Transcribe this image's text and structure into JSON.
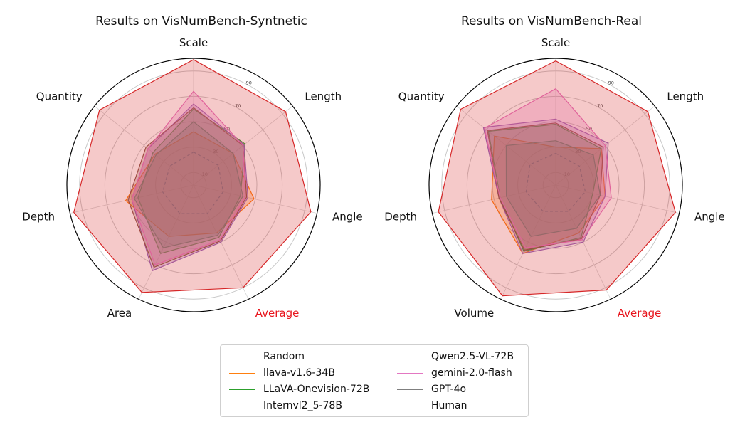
{
  "chart_data": [
    {
      "type": "radar",
      "title": "Results on VisNumBench-Syntnetic",
      "axes": [
        "Scale",
        "Length",
        "Angle",
        "Average",
        "Area",
        "Depth",
        "Quantity"
      ],
      "highlight_axis": "Average",
      "radial_ticks": [
        "10",
        "30",
        "50",
        "70",
        "90"
      ],
      "rlim": [
        0,
        100
      ],
      "grid": true,
      "series": [
        {
          "name": "Random",
          "values": [
            26,
            25,
            24,
            25,
            25,
            25,
            24
          ]
        },
        {
          "name": "llava-v1.6-34B",
          "values": [
            42,
            40,
            49,
            42,
            45,
            55,
            39
          ]
        },
        {
          "name": "LLaVA-Onevision-72B",
          "values": [
            60,
            52,
            38,
            46,
            60,
            45,
            41
          ]
        },
        {
          "name": "Internvl2_5-78B",
          "values": [
            64,
            51,
            44,
            50,
            75,
            50,
            46
          ]
        },
        {
          "name": "Qwen2.5-VL-72B",
          "values": [
            61,
            50,
            43,
            49,
            72,
            53,
            48
          ]
        },
        {
          "name": "gemini-2.0-flash",
          "values": [
            74,
            50,
            42,
            48,
            70,
            50,
            46
          ]
        },
        {
          "name": "GPT-4o",
          "values": [
            50,
            40,
            40,
            44,
            55,
            48,
            38
          ]
        },
        {
          "name": "Human",
          "values": [
            99,
            93,
            95,
            90,
            94,
            97,
            95
          ]
        }
      ]
    },
    {
      "type": "radar",
      "title": "Results on VisNumBench-Real",
      "axes": [
        "Scale",
        "Length",
        "Angle",
        "Average",
        "Volume",
        "Depth",
        "Quantity"
      ],
      "highlight_axis": "Average",
      "radial_ticks": [
        "10",
        "30",
        "50",
        "70",
        "90"
      ],
      "rlim": [
        0,
        100
      ],
      "grid": true,
      "series": [
        {
          "name": "Random",
          "values": [
            25,
            24,
            24,
            23,
            23,
            24,
            26
          ]
        },
        {
          "name": "llava-v1.6-34B",
          "values": [
            30,
            46,
            40,
            42,
            60,
            52,
            62
          ]
        },
        {
          "name": "LLaVA-Onevision-72B",
          "values": [
            48,
            46,
            30,
            46,
            58,
            45,
            68
          ]
        },
        {
          "name": "Internvl2_5-78B",
          "values": [
            52,
            53,
            40,
            50,
            60,
            46,
            73
          ]
        },
        {
          "name": "Qwen2.5-VL-72B",
          "values": [
            49,
            48,
            36,
            47,
            57,
            46,
            69
          ]
        },
        {
          "name": "gemini-2.0-flash",
          "values": [
            76,
            50,
            45,
            48,
            55,
            45,
            72
          ]
        },
        {
          "name": "GPT-4o",
          "values": [
            35,
            38,
            36,
            38,
            45,
            40,
            50
          ]
        },
        {
          "name": "Human",
          "values": [
            98,
            93,
            97,
            92,
            97,
            95,
            96
          ]
        }
      ]
    }
  ],
  "legend": [
    {
      "name": "Random",
      "color": "#1f77b4",
      "dashed": true
    },
    {
      "name": "llava-v1.6-34B",
      "color": "#ff7f0e",
      "dashed": false
    },
    {
      "name": "LLaVA-Onevision-72B",
      "color": "#2ca02c",
      "dashed": false
    },
    {
      "name": "Internvl2_5-78B",
      "color": "#9467bd",
      "dashed": false
    },
    {
      "name": "Qwen2.5-VL-72B",
      "color": "#8c564b",
      "dashed": false
    },
    {
      "name": "gemini-2.0-flash",
      "color": "#e377c2",
      "dashed": false
    },
    {
      "name": "GPT-4o",
      "color": "#7f7f7f",
      "dashed": false
    },
    {
      "name": "Human",
      "color": "#d62728",
      "dashed": false
    }
  ],
  "highlight_color": "#e8141c"
}
